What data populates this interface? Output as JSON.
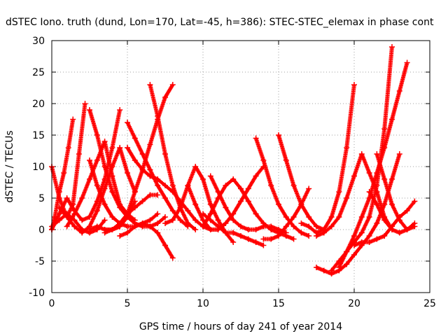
{
  "chart_data": {
    "type": "scatter",
    "title": "dSTEC Iono. truth (dund, Lon=170, Lat=-45, h=386): STEC-STEC_elemax in phase cont",
    "xlabel": "GPS time / hours of day 241 of year 2014",
    "ylabel": "dSTEC  / TECUs",
    "xlim": [
      0,
      25
    ],
    "ylim": [
      -10,
      30
    ],
    "xticks": [
      0,
      5,
      10,
      15,
      20,
      25
    ],
    "yticks": [
      -10,
      -5,
      0,
      5,
      10,
      15,
      20,
      25,
      30
    ],
    "grid": true,
    "marker": "+",
    "color": "#ff0000",
    "series": [
      {
        "x": [
          0.0,
          0.5,
          1.0,
          1.4,
          1.8,
          2.2
        ],
        "y": [
          10.0,
          5.0,
          2.0,
          4.0,
          12.0,
          20.0
        ]
      },
      {
        "x": [
          0.0,
          0.2,
          0.5,
          0.8,
          1.1,
          1.4
        ],
        "y": [
          0.0,
          2.0,
          6.0,
          9.0,
          13.0,
          17.5
        ]
      },
      {
        "x": [
          0.0,
          0.5,
          1.0,
          1.5,
          2.0,
          2.5,
          3.0,
          3.5,
          4.0,
          4.5
        ],
        "y": [
          0.0,
          2.5,
          5.0,
          3.0,
          1.5,
          2.0,
          4.5,
          8.0,
          13.0,
          19.0
        ]
      },
      {
        "x": [
          0.0,
          0.5,
          1.0,
          1.5,
          2.0,
          2.5,
          3.0,
          3.5
        ],
        "y": [
          0.5,
          1.5,
          2.5,
          1.5,
          0.0,
          -0.5,
          0.0,
          1.5
        ]
      },
      {
        "x": [
          0.5,
          1.0,
          1.5,
          2.0,
          2.5,
          3.0,
          3.5,
          4.0,
          4.5,
          5.0,
          5.5
        ],
        "y": [
          3.5,
          2.0,
          0.5,
          -0.5,
          0.5,
          3.0,
          6.5,
          10.0,
          13.0,
          9.0,
          6.0
        ]
      },
      {
        "x": [
          1.0,
          1.5,
          2.0,
          2.5,
          3.0,
          3.5,
          4.0,
          4.5,
          5.0,
          5.5
        ],
        "y": [
          0.5,
          2.5,
          5.0,
          8.0,
          11.0,
          14.0,
          8.5,
          4.0,
          2.5,
          1.5
        ]
      },
      {
        "x": [
          2.5,
          3.0,
          3.5,
          4.0,
          4.5,
          5.0,
          5.5,
          6.0,
          6.5,
          7.0,
          7.5
        ],
        "y": [
          19.0,
          15.0,
          10.0,
          6.0,
          3.5,
          2.0,
          1.0,
          0.5,
          0.5,
          1.0,
          2.0
        ]
      },
      {
        "x": [
          2.5,
          3.0,
          3.5,
          4.0,
          4.5,
          5.0,
          5.5,
          6.0,
          6.5,
          7.0
        ],
        "y": [
          11.0,
          7.0,
          4.0,
          2.0,
          1.0,
          0.5,
          0.5,
          1.0,
          1.5,
          2.5
        ]
      },
      {
        "x": [
          2.5,
          3.0,
          3.5,
          4.0,
          4.5,
          5.0,
          5.5
        ],
        "y": [
          0.0,
          0.5,
          0.0,
          0.0,
          0.5,
          2.0,
          4.5
        ]
      },
      {
        "x": [
          3.5,
          4.0,
          4.5,
          5.0,
          5.5,
          6.0,
          6.5,
          7.0,
          7.5,
          8.0
        ],
        "y": [
          0.0,
          0.0,
          0.5,
          2.5,
          6.0,
          9.5,
          13.5,
          17.5,
          21.0,
          23.0
        ]
      },
      {
        "x": [
          5.0,
          5.5,
          6.0,
          6.5,
          7.0,
          7.5,
          8.0,
          8.5,
          9.0
        ],
        "y": [
          17.0,
          14.5,
          12.0,
          9.5,
          7.0,
          5.0,
          3.0,
          1.5,
          0.5
        ]
      },
      {
        "x": [
          5.0,
          5.5,
          6.0,
          6.5,
          7.0,
          7.5,
          8.0,
          8.5,
          9.0,
          9.5,
          10.0,
          10.5,
          11.0
        ],
        "y": [
          13.0,
          11.0,
          9.5,
          8.5,
          8.0,
          7.0,
          6.0,
          4.5,
          3.0,
          1.5,
          0.5,
          0.0,
          0.0
        ]
      },
      {
        "x": [
          4.5,
          5.0,
          5.5,
          6.0,
          6.5,
          7.0,
          7.5,
          8.0
        ],
        "y": [
          -1.0,
          -0.5,
          0.5,
          1.0,
          0.5,
          -0.5,
          -2.5,
          -4.5
        ]
      },
      {
        "x": [
          3.5,
          4.0,
          4.5,
          5.0,
          5.5,
          6.0,
          6.5,
          7.0
        ],
        "y": [
          -0.5,
          0.0,
          1.0,
          2.5,
          3.5,
          4.5,
          5.5,
          5.5
        ]
      },
      {
        "x": [
          6.5,
          7.0,
          7.5,
          8.0,
          8.5,
          9.0,
          9.5
        ],
        "y": [
          23.0,
          18.0,
          12.0,
          7.0,
          3.5,
          1.0,
          0.0
        ]
      },
      {
        "x": [
          7.5,
          8.0,
          8.5,
          9.0,
          9.5,
          10.0,
          10.5,
          11.0,
          11.5,
          12.0
        ],
        "y": [
          1.0,
          1.5,
          3.5,
          7.0,
          10.0,
          8.0,
          4.0,
          1.5,
          -0.5,
          -2.0
        ]
      },
      {
        "x": [
          9.0,
          9.5,
          10.0,
          10.5,
          11.0,
          11.5,
          12.0,
          12.5,
          13.0,
          13.5,
          14.0
        ],
        "y": [
          7.0,
          4.0,
          1.5,
          0.0,
          0.0,
          1.0,
          2.5,
          4.5,
          6.5,
          8.5,
          10.0
        ]
      },
      {
        "x": [
          10.0,
          10.5,
          11.0,
          11.5,
          12.0,
          12.5,
          13.0,
          13.5,
          14.0
        ],
        "y": [
          2.5,
          1.5,
          0.5,
          -0.5,
          -0.5,
          -1.0,
          -1.5,
          -2.0,
          -2.5
        ]
      },
      {
        "x": [
          10.0,
          10.5,
          11.0,
          11.5,
          12.0,
          12.5,
          13.0,
          13.5,
          14.0,
          14.5,
          15.0,
          15.5,
          16.0
        ],
        "y": [
          0.5,
          2.5,
          5.0,
          7.0,
          8.0,
          6.5,
          4.5,
          2.5,
          1.0,
          0.0,
          -0.5,
          -1.0,
          -1.5
        ]
      },
      {
        "x": [
          10.5,
          11.0,
          11.5,
          12.0,
          12.5,
          13.0,
          13.5,
          14.0,
          14.5,
          15.0,
          15.5
        ],
        "y": [
          8.5,
          6.0,
          3.5,
          1.5,
          0.5,
          0.0,
          0.0,
          0.5,
          0.5,
          0.0,
          -0.5
        ]
      },
      {
        "x": [
          13.5,
          14.0,
          14.5,
          15.0,
          15.5,
          16.0,
          16.5,
          17.0
        ],
        "y": [
          14.5,
          11.0,
          7.0,
          4.0,
          2.0,
          0.5,
          -0.5,
          -1.0
        ]
      },
      {
        "x": [
          15.0,
          15.5,
          16.0,
          16.5,
          17.0,
          17.5,
          18.0
        ],
        "y": [
          15.0,
          11.0,
          7.0,
          4.0,
          2.0,
          0.5,
          0.0
        ]
      },
      {
        "x": [
          14.0,
          14.5,
          15.0,
          15.5,
          16.0,
          16.5,
          17.0
        ],
        "y": [
          -1.5,
          -1.5,
          -1.0,
          0.5,
          2.0,
          4.0,
          6.5
        ]
      },
      {
        "x": [
          16.5,
          17.0,
          17.5,
          18.0,
          18.5,
          19.0,
          19.5,
          20.0
        ],
        "y": [
          1.0,
          0.5,
          -0.5,
          0.0,
          2.0,
          6.0,
          13.0,
          23.0
        ]
      },
      {
        "x": [
          17.5,
          18.0,
          18.5,
          19.0,
          19.5,
          20.0,
          20.5,
          21.0,
          21.5,
          22.0,
          22.5
        ],
        "y": [
          -1.0,
          -0.5,
          0.5,
          2.0,
          5.0,
          8.5,
          12.0,
          9.0,
          6.0,
          2.0,
          0.0
        ]
      },
      {
        "x": [
          17.5,
          18.0,
          18.5,
          19.0,
          19.5,
          20.0,
          20.5,
          21.0,
          21.5,
          22.0,
          22.5,
          23.0
        ],
        "y": [
          -6.0,
          -6.5,
          -7.0,
          -6.5,
          -5.5,
          -4.0,
          -2.5,
          -1.0,
          1.0,
          4.0,
          8.0,
          12.0
        ]
      },
      {
        "x": [
          18.5,
          19.0,
          19.5,
          20.0,
          20.5,
          21.0,
          21.5,
          22.0,
          22.5
        ],
        "y": [
          -6.5,
          -5.0,
          -3.5,
          -2.0,
          -0.5,
          2.0,
          7.0,
          16.0,
          29.0
        ]
      },
      {
        "x": [
          19.0,
          19.5,
          20.0,
          20.5,
          21.0,
          21.5,
          22.0,
          22.5,
          23.0,
          23.5
        ],
        "y": [
          -6.0,
          -3.5,
          -1.0,
          2.0,
          5.0,
          9.0,
          13.0,
          17.5,
          22.0,
          26.5
        ]
      },
      {
        "x": [
          20.0,
          20.5,
          21.0,
          21.5,
          22.0,
          22.5,
          23.0,
          23.5,
          24.0
        ],
        "y": [
          -2.5,
          -2.0,
          -2.0,
          -1.5,
          -1.0,
          0.5,
          2.0,
          3.0,
          4.5
        ]
      },
      {
        "x": [
          21.0,
          21.5,
          22.0,
          22.5,
          23.0,
          23.5,
          24.0
        ],
        "y": [
          6.0,
          4.0,
          1.5,
          0.0,
          -0.5,
          0.0,
          1.0
        ]
      },
      {
        "x": [
          21.5,
          22.0,
          22.5,
          23.0,
          23.5,
          24.0
        ],
        "y": [
          12.0,
          8.0,
          4.0,
          1.5,
          0.0,
          0.5
        ]
      }
    ]
  }
}
